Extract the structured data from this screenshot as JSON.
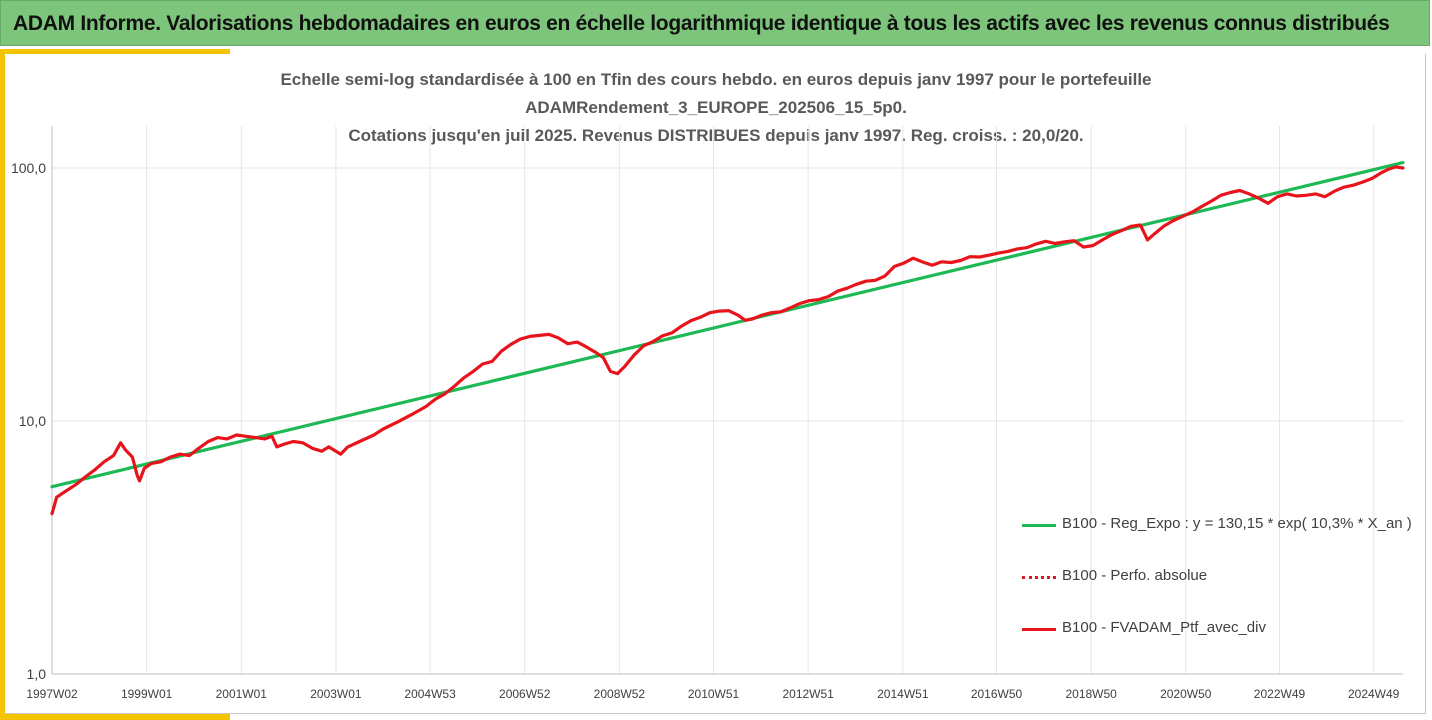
{
  "header": {
    "title": "ADAM Informe. Valorisations hebdomadaires en euros en échelle logarithmique identique à tous les actifs avec les revenus connus distribués"
  },
  "colors": {
    "banner": "#7dc57a",
    "accent": "#f5c400",
    "regression": "#1db954",
    "portfolio": "#e8141b",
    "absolute": "#e8141b",
    "grid": "#e6e6e6"
  },
  "chart_data": {
    "type": "line",
    "title": [
      "Echelle semi-log standardisée à 100 en Tfin des cours hebdo.  en euros depuis janv 1997 pour le portefeuille",
      "ADAMRendement_3_EUROPE_202506_15_5p0.",
      "Cotations  jusqu'en juil 2025. Revenus DISTRIBUES depuis janv 1997. Reg. croiss. : 20,0/20."
    ],
    "y_scale": "log",
    "ylim": [
      1,
      160
    ],
    "yticks": [
      1,
      10,
      100
    ],
    "ytick_labels": [
      "1,0",
      "10,0",
      "100,0"
    ],
    "xlim": [
      1997.0,
      2025.55
    ],
    "xticks": [
      1997.0,
      1999.0,
      2001.0,
      2003.0,
      2004.99,
      2006.99,
      2008.99,
      2010.98,
      2012.98,
      2014.98,
      2016.96,
      2018.96,
      2020.96,
      2022.94,
      2024.93
    ],
    "xtick_labels": [
      "1997W02",
      "1999W01",
      "2001W01",
      "2003W01",
      "2004W53",
      "2006W52",
      "2008W52",
      "2010W51",
      "2012W51",
      "2014W51",
      "2016W50",
      "2018W50",
      "2020W50",
      "2022W49",
      "2024W49"
    ],
    "grid": true,
    "legend_position": "right",
    "series": [
      {
        "name": "B100 - Reg_Expo : y = 130,15 * exp( 10,3% *  X_an )",
        "style": "solid",
        "color": "#1db954",
        "points": [
          [
            1997.0,
            5.5
          ],
          [
            2025.55,
            105.0
          ]
        ]
      },
      {
        "name": "B100 - Perfo. absolue",
        "style": "dotted",
        "color": "#e8141b",
        "points": []
      },
      {
        "name": "B100 - FVADAM_Ptf_avec_div",
        "style": "solid",
        "color": "#e8141b",
        "points": [
          [
            1997.0,
            4.3
          ],
          [
            1997.1,
            5.0
          ],
          [
            1997.3,
            5.3
          ],
          [
            1997.5,
            5.6
          ],
          [
            1997.7,
            6.0
          ],
          [
            1997.9,
            6.4
          ],
          [
            1998.1,
            6.9
          ],
          [
            1998.3,
            7.3
          ],
          [
            1998.45,
            8.2
          ],
          [
            1998.55,
            7.7
          ],
          [
            1998.7,
            7.2
          ],
          [
            1998.8,
            6.1
          ],
          [
            1998.85,
            5.8
          ],
          [
            1998.95,
            6.5
          ],
          [
            1999.1,
            6.8
          ],
          [
            1999.3,
            6.9
          ],
          [
            1999.5,
            7.2
          ],
          [
            1999.7,
            7.4
          ],
          [
            1999.9,
            7.3
          ],
          [
            2000.1,
            7.8
          ],
          [
            2000.3,
            8.3
          ],
          [
            2000.5,
            8.6
          ],
          [
            2000.7,
            8.5
          ],
          [
            2000.9,
            8.8
          ],
          [
            2001.1,
            8.7
          ],
          [
            2001.3,
            8.6
          ],
          [
            2001.5,
            8.5
          ],
          [
            2001.65,
            8.7
          ],
          [
            2001.75,
            7.9
          ],
          [
            2001.9,
            8.1
          ],
          [
            2002.1,
            8.3
          ],
          [
            2002.3,
            8.2
          ],
          [
            2002.5,
            7.8
          ],
          [
            2002.7,
            7.6
          ],
          [
            2002.85,
            7.9
          ],
          [
            2003.0,
            7.6
          ],
          [
            2003.1,
            7.4
          ],
          [
            2003.25,
            7.9
          ],
          [
            2003.5,
            8.3
          ],
          [
            2003.8,
            8.8
          ],
          [
            2004.0,
            9.3
          ],
          [
            2004.3,
            9.9
          ],
          [
            2004.6,
            10.6
          ],
          [
            2004.9,
            11.4
          ],
          [
            2005.1,
            12.2
          ],
          [
            2005.3,
            12.8
          ],
          [
            2005.5,
            13.7
          ],
          [
            2005.7,
            14.8
          ],
          [
            2005.9,
            15.7
          ],
          [
            2006.1,
            16.8
          ],
          [
            2006.3,
            17.2
          ],
          [
            2006.5,
            18.9
          ],
          [
            2006.7,
            20.1
          ],
          [
            2006.9,
            21.1
          ],
          [
            2007.1,
            21.6
          ],
          [
            2007.3,
            21.8
          ],
          [
            2007.5,
            22.0
          ],
          [
            2007.7,
            21.3
          ],
          [
            2007.9,
            20.2
          ],
          [
            2008.1,
            20.5
          ],
          [
            2008.3,
            19.6
          ],
          [
            2008.5,
            18.6
          ],
          [
            2008.65,
            17.8
          ],
          [
            2008.8,
            15.7
          ],
          [
            2008.95,
            15.4
          ],
          [
            2009.1,
            16.4
          ],
          [
            2009.3,
            18.2
          ],
          [
            2009.5,
            19.8
          ],
          [
            2009.7,
            20.6
          ],
          [
            2009.9,
            21.7
          ],
          [
            2010.1,
            22.3
          ],
          [
            2010.3,
            23.7
          ],
          [
            2010.5,
            24.9
          ],
          [
            2010.7,
            25.7
          ],
          [
            2010.9,
            26.8
          ],
          [
            2011.1,
            27.2
          ],
          [
            2011.3,
            27.3
          ],
          [
            2011.5,
            26.2
          ],
          [
            2011.65,
            25.0
          ],
          [
            2011.8,
            25.3
          ],
          [
            2012.0,
            26.2
          ],
          [
            2012.2,
            26.8
          ],
          [
            2012.4,
            27.0
          ],
          [
            2012.6,
            28.0
          ],
          [
            2012.8,
            29.1
          ],
          [
            2013.0,
            29.9
          ],
          [
            2013.2,
            30.2
          ],
          [
            2013.4,
            31.0
          ],
          [
            2013.6,
            32.6
          ],
          [
            2013.8,
            33.5
          ],
          [
            2014.0,
            34.7
          ],
          [
            2014.2,
            35.7
          ],
          [
            2014.4,
            36.0
          ],
          [
            2014.6,
            37.4
          ],
          [
            2014.8,
            40.8
          ],
          [
            2015.0,
            42.1
          ],
          [
            2015.2,
            44.0
          ],
          [
            2015.4,
            42.5
          ],
          [
            2015.6,
            41.3
          ],
          [
            2015.8,
            42.6
          ],
          [
            2016.0,
            42.3
          ],
          [
            2016.2,
            43.1
          ],
          [
            2016.4,
            44.6
          ],
          [
            2016.6,
            44.5
          ],
          [
            2016.8,
            45.2
          ],
          [
            2017.0,
            46.1
          ],
          [
            2017.2,
            46.8
          ],
          [
            2017.4,
            47.9
          ],
          [
            2017.6,
            48.4
          ],
          [
            2017.8,
            50.1
          ],
          [
            2018.0,
            51.3
          ],
          [
            2018.2,
            50.3
          ],
          [
            2018.4,
            51.1
          ],
          [
            2018.6,
            51.6
          ],
          [
            2018.8,
            48.7
          ],
          [
            2019.0,
            49.4
          ],
          [
            2019.2,
            52.0
          ],
          [
            2019.4,
            54.6
          ],
          [
            2019.6,
            56.5
          ],
          [
            2019.8,
            58.8
          ],
          [
            2020.0,
            59.5
          ],
          [
            2020.15,
            52.0
          ],
          [
            2020.3,
            55.0
          ],
          [
            2020.5,
            59.0
          ],
          [
            2020.7,
            62.0
          ],
          [
            2020.9,
            64.5
          ],
          [
            2021.1,
            67.0
          ],
          [
            2021.3,
            70.5
          ],
          [
            2021.5,
            74.0
          ],
          [
            2021.7,
            78.0
          ],
          [
            2021.9,
            80.0
          ],
          [
            2022.1,
            81.5
          ],
          [
            2022.3,
            79.0
          ],
          [
            2022.5,
            76.0
          ],
          [
            2022.7,
            72.5
          ],
          [
            2022.9,
            77.0
          ],
          [
            2023.1,
            79.0
          ],
          [
            2023.3,
            77.5
          ],
          [
            2023.5,
            78.0
          ],
          [
            2023.7,
            79.0
          ],
          [
            2023.9,
            77.0
          ],
          [
            2024.1,
            81.0
          ],
          [
            2024.3,
            84.0
          ],
          [
            2024.5,
            85.5
          ],
          [
            2024.7,
            88.0
          ],
          [
            2024.9,
            91.0
          ],
          [
            2025.1,
            96.0
          ],
          [
            2025.25,
            99.0
          ],
          [
            2025.4,
            101.0
          ],
          [
            2025.55,
            100.0
          ]
        ]
      }
    ]
  }
}
